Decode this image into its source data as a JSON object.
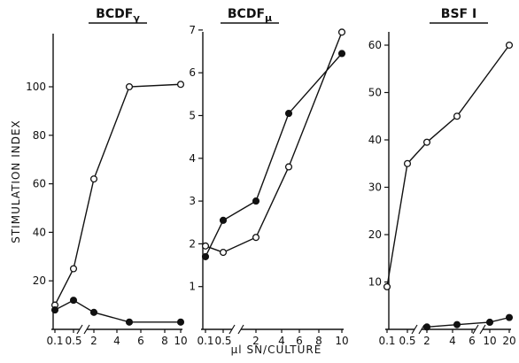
{
  "chart_data": [
    {
      "type": "line",
      "title": "BCDF",
      "title_sub": "γ",
      "ylabel": "STIMULATION INDEX",
      "x_scale": "broken: 0.1–0.5 | 2–10",
      "x_ticks": [
        "0.1",
        "0.5",
        "2",
        "4",
        "6",
        "8",
        "10"
      ],
      "y_ticks": [
        "20",
        "40",
        "60",
        "80",
        "100"
      ],
      "ylim": [
        0,
        125
      ],
      "series": [
        {
          "marker": "open-circle",
          "x": [
            0.1,
            0.5,
            2,
            5,
            10
          ],
          "y": [
            10,
            25,
            62,
            100,
            101
          ]
        },
        {
          "marker": "filled-circle",
          "x": [
            0.1,
            0.5,
            2,
            5,
            10
          ],
          "y": [
            8,
            12,
            7,
            3,
            3
          ]
        }
      ]
    },
    {
      "type": "line",
      "title": "BCDF",
      "title_sub": "μ",
      "x_scale": "broken: 0.1–0.5 | 2–10",
      "x_ticks": [
        "0.1",
        "0.5",
        "2",
        "4",
        "6",
        "8",
        "10"
      ],
      "y_ticks": [
        "1",
        "2",
        "3",
        "4",
        "5",
        "6",
        "7"
      ],
      "ylim": [
        0,
        7
      ],
      "series": [
        {
          "marker": "open-circle",
          "x": [
            0.1,
            0.5,
            2,
            5,
            10
          ],
          "y": [
            1.95,
            1.8,
            2.15,
            3.8,
            6.95
          ]
        },
        {
          "marker": "filled-circle",
          "x": [
            0.1,
            0.5,
            2,
            5,
            10
          ],
          "y": [
            1.7,
            2.55,
            3.0,
            5.05,
            6.45
          ]
        }
      ]
    },
    {
      "type": "line",
      "title": "BSF I",
      "x_scale": "broken: 0.1–0.5 | 2–6 | 10–20",
      "x_ticks": [
        "0.1",
        "0.5",
        "2",
        "4",
        "6",
        "10",
        "20"
      ],
      "y_ticks": [
        "10",
        "20",
        "30",
        "40",
        "50",
        "60"
      ],
      "ylim": [
        0,
        70
      ],
      "series": [
        {
          "marker": "open-circle",
          "x": [
            0.1,
            0.5,
            2,
            5,
            20
          ],
          "y": [
            9,
            35,
            39.5,
            45,
            60
          ]
        },
        {
          "marker": "filled-circle",
          "x": [
            2,
            5,
            10,
            20
          ],
          "y": [
            0.5,
            1,
            1.5,
            2.5
          ]
        }
      ]
    }
  ],
  "shared": {
    "xlabel": "μl SN/CULTURE"
  }
}
